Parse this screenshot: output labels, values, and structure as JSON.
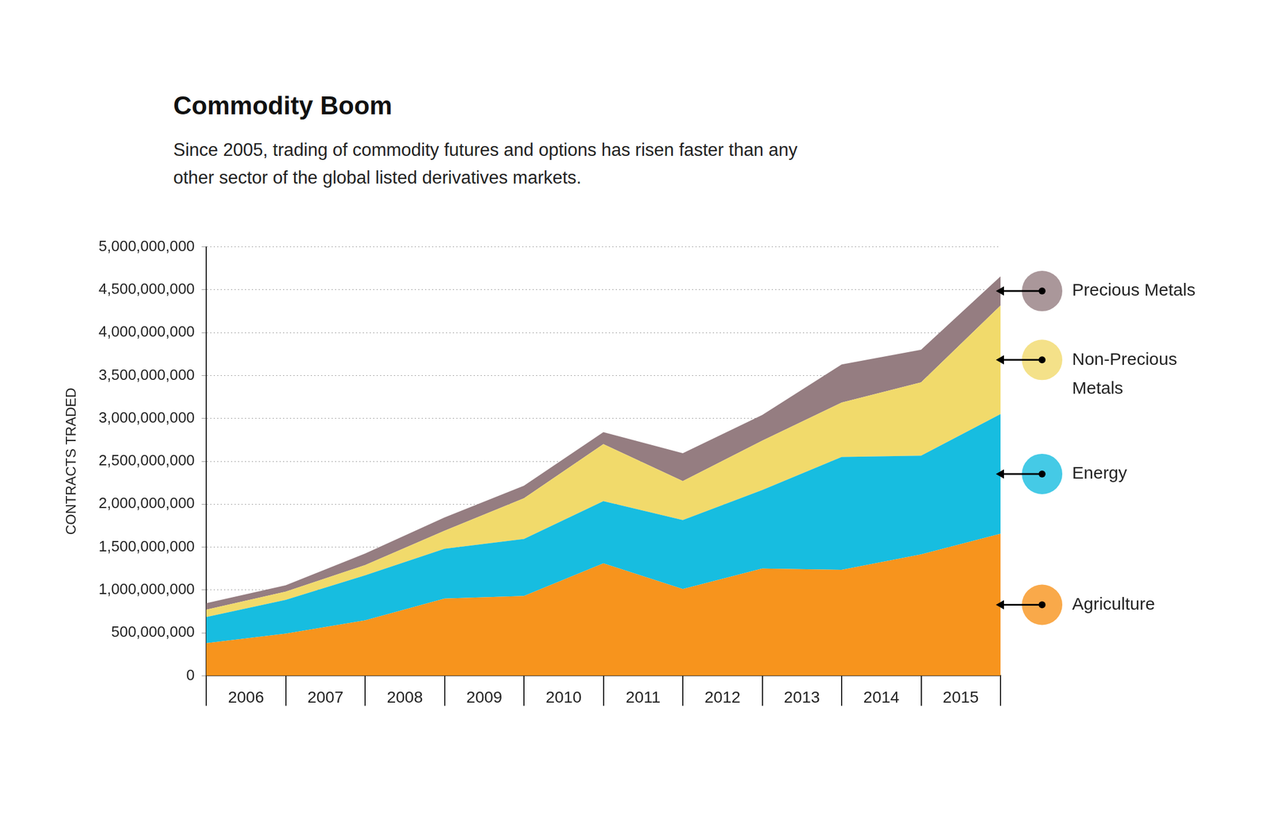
{
  "chart_data": {
    "type": "area",
    "title": "Commodity Boom",
    "subtitle": "Since 2005, trading of commodity futures and options has risen faster than any other sector of the global listed derivatives markets.",
    "y_label": "CONTRACTS TRADED",
    "x": [
      2005.5,
      2006.5,
      2007.5,
      2008.5,
      2009.5,
      2010.5,
      2011.5,
      2012.5,
      2013.5,
      2014.5,
      2015.5
    ],
    "xlim": [
      2005.5,
      2015.5
    ],
    "xticks": [
      2006,
      2007,
      2008,
      2009,
      2010,
      2011,
      2012,
      2013,
      2014,
      2015
    ],
    "ylim": [
      0,
      5000000000
    ],
    "yticks": [
      0,
      {
        "value": 500000000,
        "label": "500,000,000"
      },
      {
        "value": 1000000000,
        "label": "1,000,000,000"
      },
      {
        "value": 1500000000,
        "label": "1,500,000,000"
      },
      {
        "value": 2000000000,
        "label": "2,000,000,000"
      },
      {
        "value": 2500000000,
        "label": "2,500,000,000"
      },
      {
        "value": 3000000000,
        "label": "3,000,000,000"
      },
      {
        "value": 3500000000,
        "label": "3,500,000,000"
      },
      {
        "value": 4000000000,
        "label": "4,000,000,000"
      },
      {
        "value": 4500000000,
        "label": "4,500,000,000"
      },
      {
        "value": 5000000000,
        "label": "5,000,000,000"
      }
    ],
    "stacked": true,
    "grid": true,
    "legend": "right",
    "series": [
      {
        "name": "Agriculture",
        "color": "#f7941d",
        "values": [
          380000000,
          490000000,
          645000000,
          900000000,
          930000000,
          1310000000,
          1010000000,
          1250000000,
          1235000000,
          1415000000,
          1655000000
        ]
      },
      {
        "name": "Energy",
        "color": "#17bde0",
        "values": [
          305000000,
          395000000,
          525000000,
          580000000,
          665000000,
          725000000,
          805000000,
          915000000,
          1315000000,
          1150000000,
          1395000000
        ]
      },
      {
        "name": "Non-Precious Metals",
        "color": "#f1da6b",
        "values": [
          85000000,
          95000000,
          120000000,
          210000000,
          475000000,
          665000000,
          455000000,
          575000000,
          635000000,
          855000000,
          1265000000
        ]
      },
      {
        "name": "Precious Metals",
        "color": "#957d81",
        "values": [
          75000000,
          75000000,
          135000000,
          155000000,
          145000000,
          140000000,
          325000000,
          300000000,
          445000000,
          380000000,
          340000000
        ]
      }
    ]
  }
}
